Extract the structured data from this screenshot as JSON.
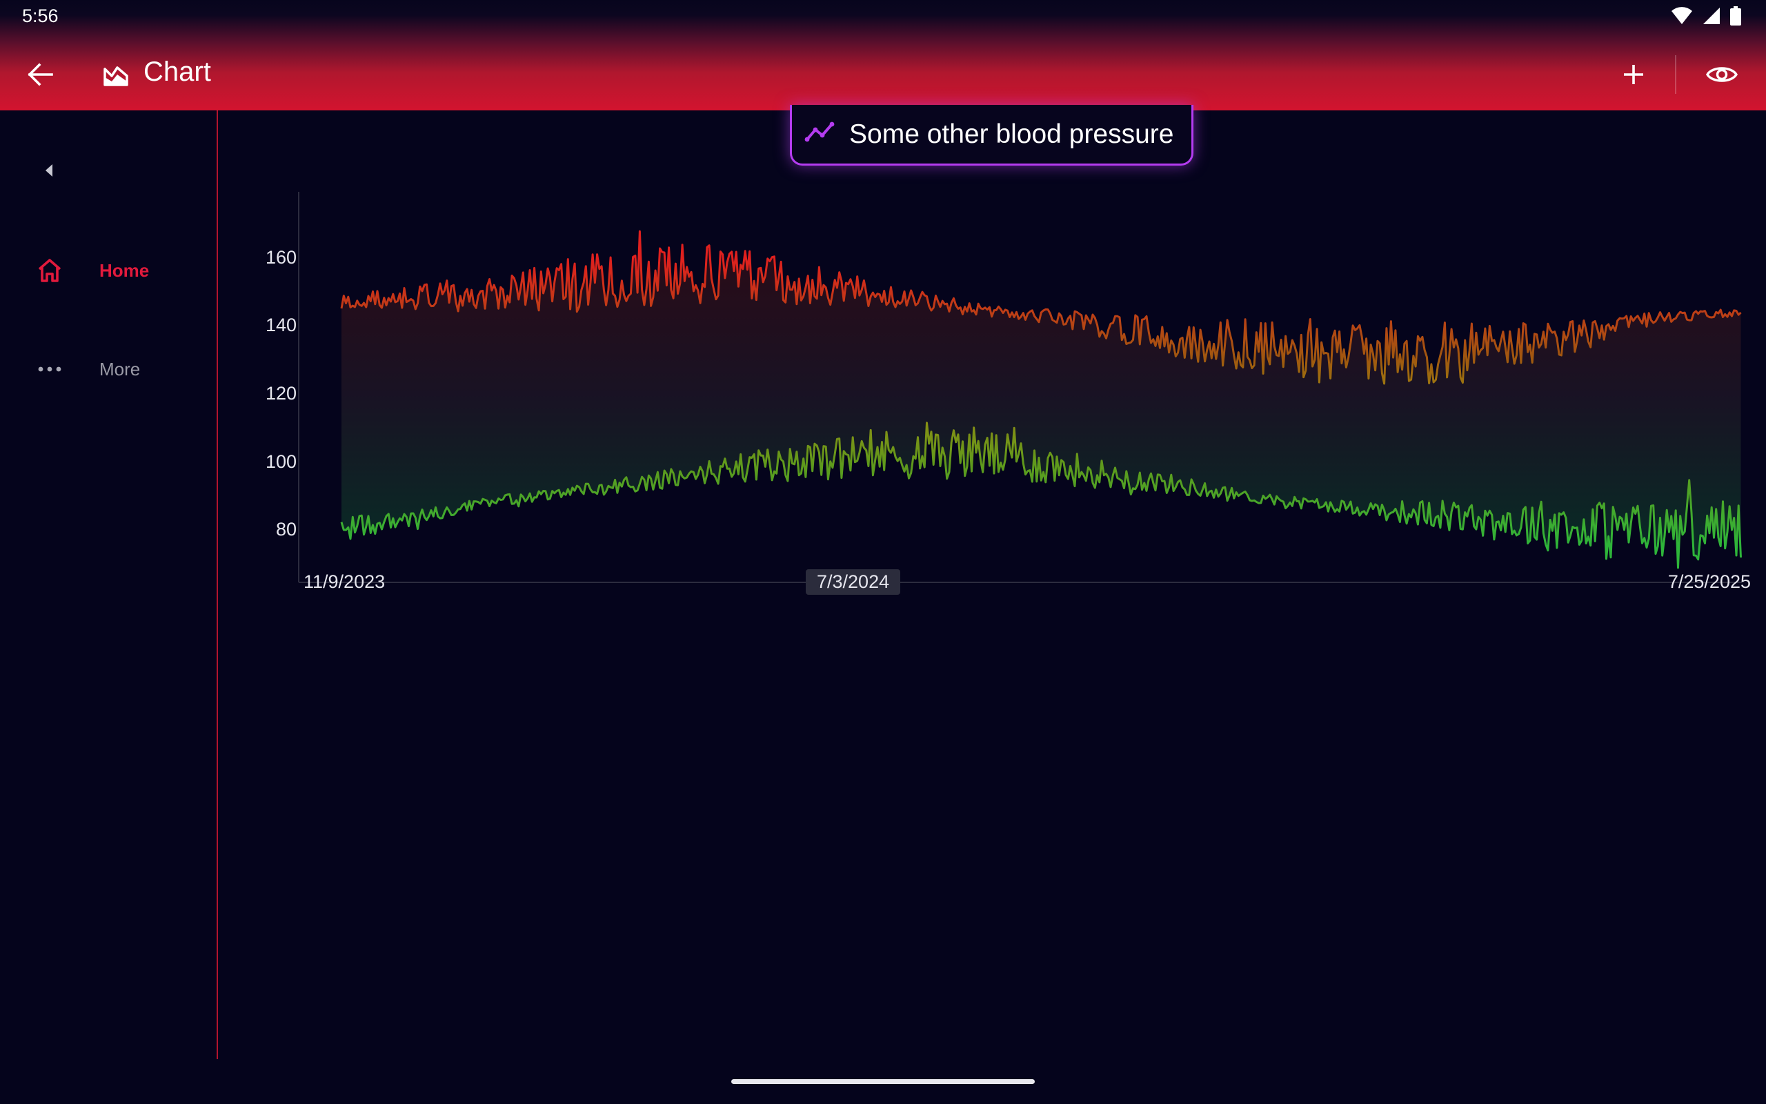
{
  "status_bar": {
    "time": "5:56",
    "icons": [
      "wifi-icon",
      "cellular-signal-icon",
      "battery-icon"
    ]
  },
  "app_bar": {
    "title": "Chart",
    "icons": [
      "back-arrow-icon",
      "chart-area-icon",
      "plus-icon",
      "eye-icon"
    ]
  },
  "nav": {
    "items": [
      {
        "label": "Home",
        "icon": "home-icon",
        "active": true
      },
      {
        "label": "More",
        "icon": "more-dots-icon",
        "active": false
      }
    ]
  },
  "chart_title": "Some other blood pressure",
  "colors": {
    "accent": "#e11a3c",
    "appbar": "#d3142f",
    "pill_border": "#b43cf0",
    "high": "#e0201e",
    "mid": "#9a8a10",
    "low": "#2eb53a"
  },
  "chart_data": {
    "type": "line",
    "title": "Some other blood pressure",
    "x_ticks": [
      "11/9/2023",
      "7/3/2024",
      "7/25/2025"
    ],
    "highlighted_x_tick": "7/3/2024",
    "y_ticks": [
      160,
      140,
      120,
      100,
      80
    ],
    "xlim": [
      "2023-10-20",
      "2025-07-27"
    ],
    "ylim": [
      65,
      177
    ],
    "series": [
      {
        "description": "upper line (systolic-like), daily values, noisy",
        "x_range": [
          "2023-11-09",
          "2025-07-25"
        ],
        "trend": [
          [
            0.0,
            147
          ],
          [
            0.12,
            150
          ],
          [
            0.22,
            154
          ],
          [
            0.27,
            156
          ],
          [
            0.34,
            152
          ],
          [
            0.42,
            147
          ],
          [
            0.47,
            144
          ],
          [
            0.52,
            142
          ],
          [
            0.6,
            136
          ],
          [
            0.7,
            132
          ],
          [
            0.78,
            131
          ],
          [
            0.86,
            135
          ],
          [
            0.93,
            142
          ],
          [
            1.0,
            144
          ]
        ],
        "noise": [
          [
            0.0,
            2
          ],
          [
            0.12,
            6
          ],
          [
            0.2,
            10
          ],
          [
            0.3,
            8
          ],
          [
            0.4,
            3
          ],
          [
            0.48,
            1.5
          ],
          [
            0.55,
            4
          ],
          [
            0.65,
            8
          ],
          [
            0.72,
            9
          ],
          [
            0.85,
            7
          ],
          [
            0.92,
            2
          ],
          [
            1.0,
            1
          ]
        ]
      },
      {
        "description": "lower line (diastolic-like), daily values, noisy",
        "x_range": [
          "2023-11-09",
          "2025-07-25"
        ],
        "trend": [
          [
            0.0,
            80
          ],
          [
            0.07,
            85
          ],
          [
            0.12,
            89
          ],
          [
            0.2,
            93
          ],
          [
            0.3,
            99
          ],
          [
            0.38,
            102
          ],
          [
            0.45,
            103
          ],
          [
            0.52,
            98
          ],
          [
            0.6,
            93
          ],
          [
            0.66,
            89
          ],
          [
            0.74,
            86
          ],
          [
            0.82,
            83
          ],
          [
            0.9,
            80
          ],
          [
            1.0,
            80
          ]
        ],
        "noise": [
          [
            0.0,
            4
          ],
          [
            0.06,
            2
          ],
          [
            0.15,
            1.5
          ],
          [
            0.25,
            3
          ],
          [
            0.35,
            7
          ],
          [
            0.45,
            8
          ],
          [
            0.55,
            4
          ],
          [
            0.65,
            1.5
          ],
          [
            0.72,
            2
          ],
          [
            0.8,
            5
          ],
          [
            0.9,
            9
          ],
          [
            1.0,
            9
          ]
        ]
      }
    ],
    "fill_between": true,
    "line_color_by_value": {
      "high": "#e0201e",
      "mid": "#9a8a10",
      "low": "#2eb53a"
    },
    "grid": false
  }
}
